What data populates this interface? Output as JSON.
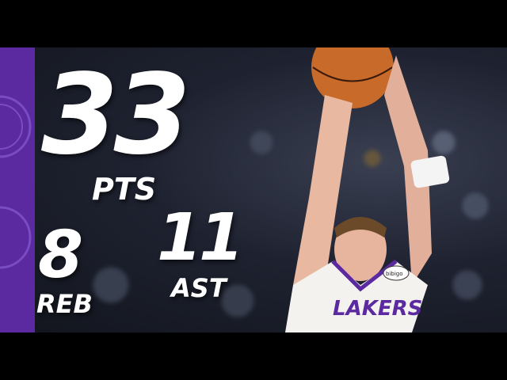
{
  "stats": {
    "points": {
      "value": "33",
      "label": "PTS"
    },
    "rebounds": {
      "value": "8",
      "label": "REB"
    },
    "assists": {
      "value": "11",
      "label": "AST"
    }
  },
  "jersey": {
    "team_text": "LAKERS",
    "patch_text": "bibigo"
  },
  "colors": {
    "team_purple": "#5b2aa0",
    "team_gold": "#f5b82e",
    "jersey_white": "#f4f2ee"
  }
}
